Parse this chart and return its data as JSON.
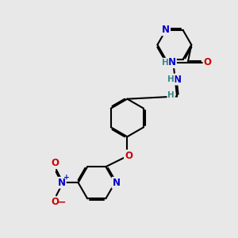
{
  "bg_color": "#e8e8e8",
  "bond_color": "#000000",
  "bond_width": 1.5,
  "dbo": 0.06,
  "atom_colors": {
    "N": "#0000cc",
    "O": "#cc0000",
    "H": "#3a8a8a"
  },
  "fs": 8.5
}
